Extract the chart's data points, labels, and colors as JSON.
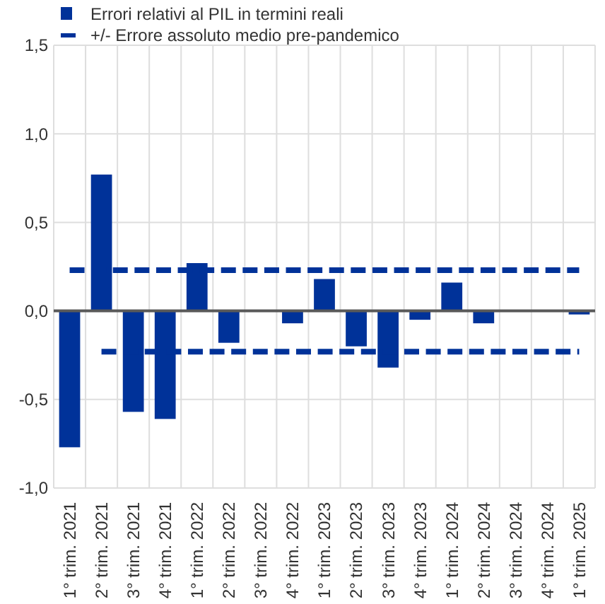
{
  "chart_data": {
    "type": "bar",
    "categories": [
      "1° trim. 2021",
      "2° trim. 2021",
      "3° trim. 2021",
      "4° trim. 2021",
      "1° trim. 2022",
      "2° trim. 2022",
      "3° trim. 2022",
      "4° trim. 2022",
      "1° trim. 2023",
      "2° trim. 2023",
      "3° trim. 2023",
      "4° trim. 2023",
      "1° trim. 2024",
      "2° trim. 2024",
      "3° trim. 2024",
      "4° trim. 2024",
      "1° trim. 2025"
    ],
    "series": [
      {
        "name": "Errori relativi al PIL in termini reali",
        "color": "#003299",
        "values": [
          -0.77,
          0.77,
          -0.57,
          -0.61,
          0.27,
          -0.18,
          null,
          -0.07,
          0.18,
          -0.2,
          -0.32,
          -0.05,
          0.16,
          -0.07,
          null,
          null,
          -0.02
        ]
      },
      {
        "name": "+/- Errore assoluto medio pre-pandemico",
        "type": "line",
        "color": "#003299",
        "values": [
          0.23,
          0.23,
          0.23,
          0.23,
          0.23,
          0.23,
          0.23,
          0.23,
          0.23,
          0.23,
          0.23,
          0.23,
          0.23,
          0.23,
          0.23,
          0.23,
          0.23
        ]
      },
      {
        "type": "line",
        "color": "#003299",
        "values": [
          null,
          -0.23,
          -0.23,
          -0.23,
          -0.23,
          -0.23,
          -0.23,
          -0.23,
          -0.23,
          -0.23,
          -0.23,
          -0.23,
          -0.23,
          -0.23,
          -0.23,
          -0.23,
          -0.23
        ]
      }
    ],
    "ylim": [
      -1,
      1.5
    ],
    "yticks": [
      {
        "value": -1,
        "label": "-1,0"
      },
      {
        "value": -0.5,
        "label": "-0,5"
      },
      {
        "value": 0,
        "label": "0,0"
      },
      {
        "value": 0.5,
        "label": "0,5"
      },
      {
        "value": 1,
        "label": "1,0"
      },
      {
        "value": 1.5,
        "label": "1,5"
      }
    ],
    "grid": true,
    "legend": "top left",
    "line_style": "dashed"
  }
}
